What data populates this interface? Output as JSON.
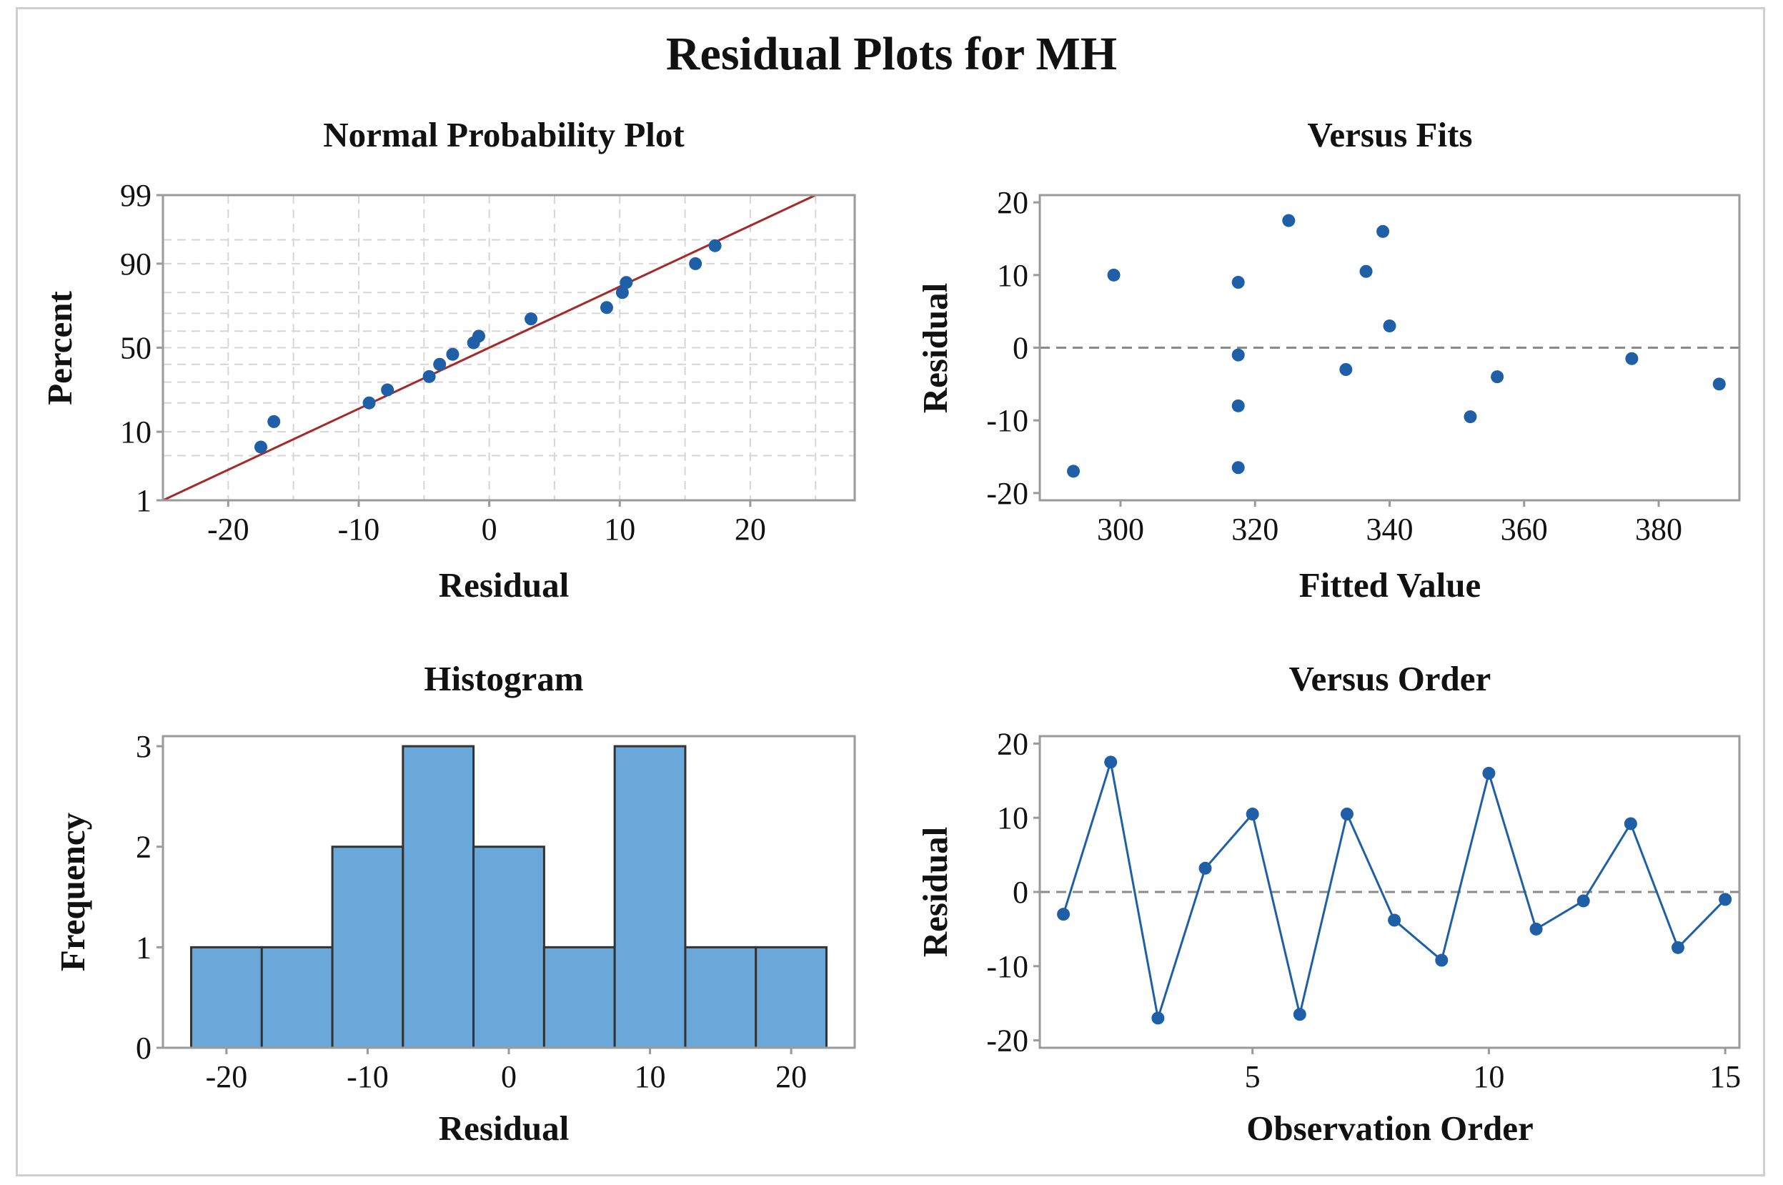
{
  "page": {
    "title": "Residual Plots for MH"
  },
  "colors": {
    "point": "#1f5fa8",
    "line": "#1f5fa8",
    "ref_line": "#a52a2a",
    "bar_fill": "#6aa8da",
    "bar_edge": "#333333",
    "grid": "#d6d6d6",
    "zero_line": "#8a8a8a",
    "frame": "#9a9a9a"
  },
  "chart_data": [
    {
      "id": "npp",
      "type": "scatter",
      "title": "Normal Probability Plot",
      "xlabel": "Residual",
      "ylabel": "Percent",
      "xlim": [
        -25,
        28
      ],
      "xticks": [
        -20,
        -10,
        0,
        10,
        20
      ],
      "ytick_labels": [
        "1",
        "10",
        "50",
        "90",
        "99"
      ],
      "ytick_percents": [
        1,
        10,
        50,
        90,
        99
      ],
      "grid": true,
      "points": [
        {
          "x": -17.5,
          "p": 6.5
        },
        {
          "x": -16.5,
          "p": 13
        },
        {
          "x": -9.2,
          "p": 20
        },
        {
          "x": -7.8,
          "p": 26
        },
        {
          "x": -4.6,
          "p": 33
        },
        {
          "x": -3.8,
          "p": 40
        },
        {
          "x": -2.8,
          "p": 46
        },
        {
          "x": -1.2,
          "p": 53
        },
        {
          "x": -0.8,
          "p": 57
        },
        {
          "x": 3.2,
          "p": 67
        },
        {
          "x": 9.0,
          "p": 73
        },
        {
          "x": 10.2,
          "p": 80
        },
        {
          "x": 10.5,
          "p": 84
        },
        {
          "x": 15.8,
          "p": 90
        },
        {
          "x": 17.3,
          "p": 94
        }
      ],
      "fit_line": {
        "x": [
          -25,
          25
        ],
        "p": [
          1,
          99
        ]
      }
    },
    {
      "id": "fits",
      "type": "scatter",
      "title": "Versus Fits",
      "xlabel": "Fitted Value",
      "ylabel": "Residual",
      "xlim": [
        288,
        392
      ],
      "ylim": [
        -21,
        21
      ],
      "xticks": [
        300,
        320,
        340,
        360,
        380
      ],
      "yticks": [
        -20,
        -10,
        0,
        10,
        20
      ],
      "reference_y": 0,
      "x": [
        293,
        299,
        317.5,
        317.5,
        317.5,
        317.5,
        325,
        333.5,
        336.5,
        339,
        340,
        352,
        356,
        376,
        389
      ],
      "y": [
        -17,
        10,
        9,
        -1,
        -8,
        -16.5,
        17.5,
        -3,
        10.5,
        16,
        3,
        -9.5,
        -4,
        -1.5,
        -5
      ]
    },
    {
      "id": "histogram",
      "type": "bar",
      "title": "Histogram",
      "xlabel": "Residual",
      "ylabel": "Frequency",
      "xlim": [
        -24.5,
        24.5
      ],
      "ylim": [
        0,
        3.1
      ],
      "xticks": [
        -20,
        -10,
        0,
        10,
        20
      ],
      "yticks": [
        0,
        1,
        2,
        3
      ],
      "bin_edges": [
        -22.5,
        -17.5,
        -12.5,
        -7.5,
        -2.5,
        2.5,
        7.5,
        12.5,
        17.5,
        22.5
      ],
      "counts": [
        1,
        1,
        2,
        3,
        2,
        1,
        3,
        1,
        1
      ]
    },
    {
      "id": "order",
      "type": "line",
      "title": "Versus Order",
      "xlabel": "Observation Order",
      "ylabel": "Residual",
      "xlim": [
        0.5,
        15.3
      ],
      "ylim": [
        -21,
        21
      ],
      "xticks": [
        5,
        10,
        15
      ],
      "yticks": [
        -20,
        -10,
        0,
        10,
        20
      ],
      "reference_y": 0,
      "x": [
        1,
        2,
        3,
        4,
        5,
        6,
        7,
        8,
        9,
        10,
        11,
        12,
        13,
        14,
        15
      ],
      "y": [
        -3,
        17.5,
        -17,
        3.2,
        10.5,
        -16.5,
        10.5,
        -3.8,
        -9.2,
        16,
        -5,
        -1.2,
        9.2,
        -7.5,
        -1
      ]
    }
  ]
}
